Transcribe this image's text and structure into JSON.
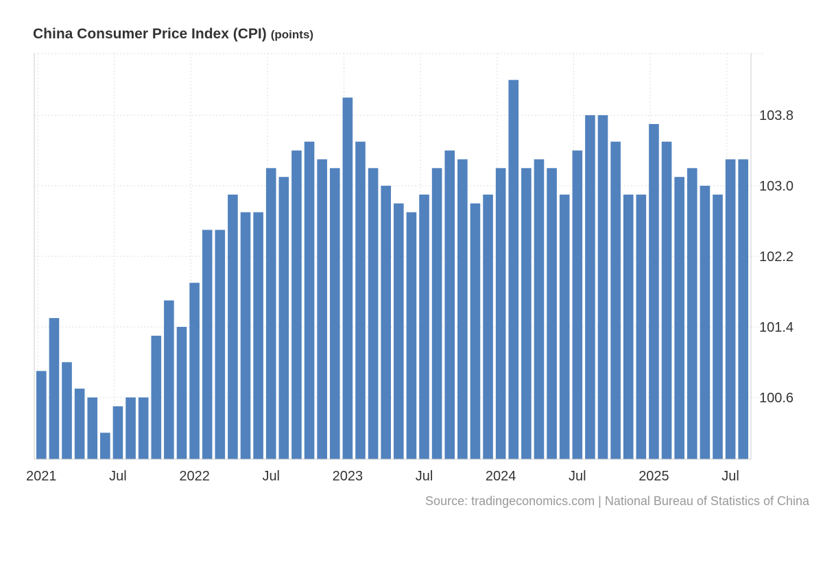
{
  "title": "China Consumer Price Index (CPI)",
  "unit": "(points)",
  "source": "Source: tradingeconomics.com | National Bureau of Statistics of China",
  "colors": {
    "bar": "#5182be",
    "grid": "#dddddd",
    "axis": "#cccccc",
    "text": "#333333",
    "source": "#999999"
  },
  "chart_data": {
    "type": "bar",
    "title": "China Consumer Price Index (CPI)",
    "ylabel": "points",
    "xlabel": "",
    "ylim": [
      99.9,
      104.5
    ],
    "yticks": [
      100.6,
      101.4,
      102.2,
      103.0,
      103.8
    ],
    "ytick_labels": [
      "100.6",
      "101.4",
      "102.2",
      "103.0",
      "103.8"
    ],
    "xtick_labels": [
      {
        "label": "2021",
        "index": 0
      },
      {
        "label": "Jul",
        "index": 6
      },
      {
        "label": "2022",
        "index": 12
      },
      {
        "label": "Jul",
        "index": 18
      },
      {
        "label": "2023",
        "index": 24
      },
      {
        "label": "Jul",
        "index": 30
      },
      {
        "label": "2024",
        "index": 36
      },
      {
        "label": "Jul",
        "index": 42
      },
      {
        "label": "2025",
        "index": 48
      },
      {
        "label": "Jul",
        "index": 54
      }
    ],
    "categories": [
      "Jan 2021",
      "Feb 2021",
      "Mar 2021",
      "Apr 2021",
      "May 2021",
      "Jun 2021",
      "Jul 2021",
      "Aug 2021",
      "Sep 2021",
      "Oct 2021",
      "Nov 2021",
      "Dec 2021",
      "Jan 2022",
      "Feb 2022",
      "Mar 2022",
      "Apr 2022",
      "May 2022",
      "Jun 2022",
      "Jul 2022",
      "Aug 2022",
      "Sep 2022",
      "Oct 2022",
      "Nov 2022",
      "Dec 2022",
      "Jan 2023",
      "Feb 2023",
      "Mar 2023",
      "Apr 2023",
      "May 2023",
      "Jun 2023",
      "Jul 2023",
      "Aug 2023",
      "Sep 2023",
      "Oct 2023",
      "Nov 2023",
      "Dec 2023",
      "Jan 2024",
      "Feb 2024",
      "Mar 2024",
      "Apr 2024",
      "May 2024",
      "Jun 2024",
      "Jul 2024",
      "Aug 2024",
      "Sep 2024",
      "Oct 2024",
      "Nov 2024",
      "Dec 2024",
      "Jan 2025",
      "Feb 2025",
      "Mar 2025",
      "Apr 2025",
      "May 2025",
      "Jun 2025",
      "Jul 2025",
      "Aug 2025"
    ],
    "values": [
      100.9,
      101.5,
      101.0,
      100.7,
      100.6,
      100.2,
      100.5,
      100.6,
      100.6,
      101.3,
      101.7,
      101.4,
      101.9,
      102.5,
      102.5,
      102.9,
      102.7,
      102.7,
      103.2,
      103.1,
      103.4,
      103.5,
      103.3,
      103.2,
      104.0,
      103.5,
      103.2,
      103.0,
      102.8,
      102.7,
      102.9,
      103.2,
      103.4,
      103.3,
      102.8,
      102.9,
      103.2,
      104.2,
      103.2,
      103.3,
      103.2,
      102.9,
      103.4,
      103.8,
      103.8,
      103.5,
      102.9,
      102.9,
      103.7,
      103.5,
      103.1,
      103.2,
      103.0,
      102.9,
      103.3,
      103.3
    ]
  }
}
